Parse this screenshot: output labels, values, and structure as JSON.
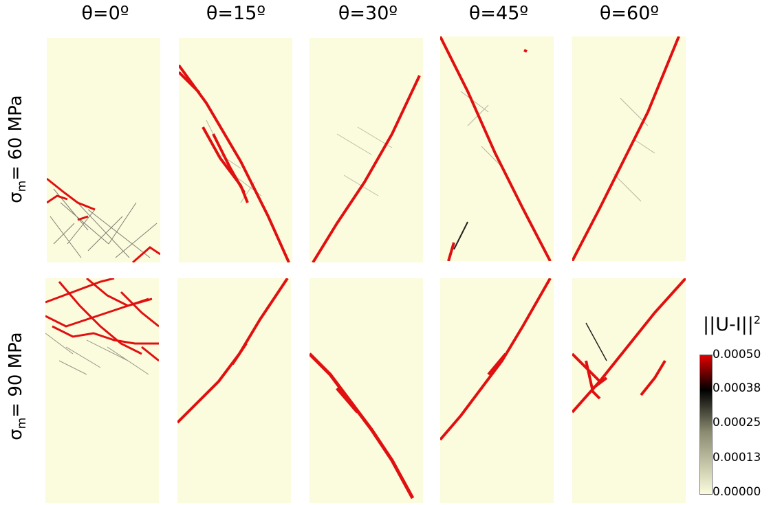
{
  "column_titles": [
    "θ=0º",
    "θ=15º",
    "θ=30º",
    "θ=45º",
    "θ=60º"
  ],
  "row_labels": [
    {
      "symbol": "σ",
      "subscript": "m",
      "text": "= 60 MPa"
    },
    {
      "symbol": "σ",
      "subscript": "m",
      "text": "= 90 MPa"
    }
  ],
  "colorbar": {
    "title": "||U-I||",
    "title_exponent": "2",
    "ticks": [
      "0.00050",
      "0.00038",
      "0.00025",
      "0.00013",
      "0.00000"
    ],
    "colors": [
      "#e00000",
      "#000000",
      "#fbfbdd"
    ]
  },
  "colors": {
    "background_field": "#fbfbdd",
    "band": "#e01010",
    "damage": "#222222"
  }
}
